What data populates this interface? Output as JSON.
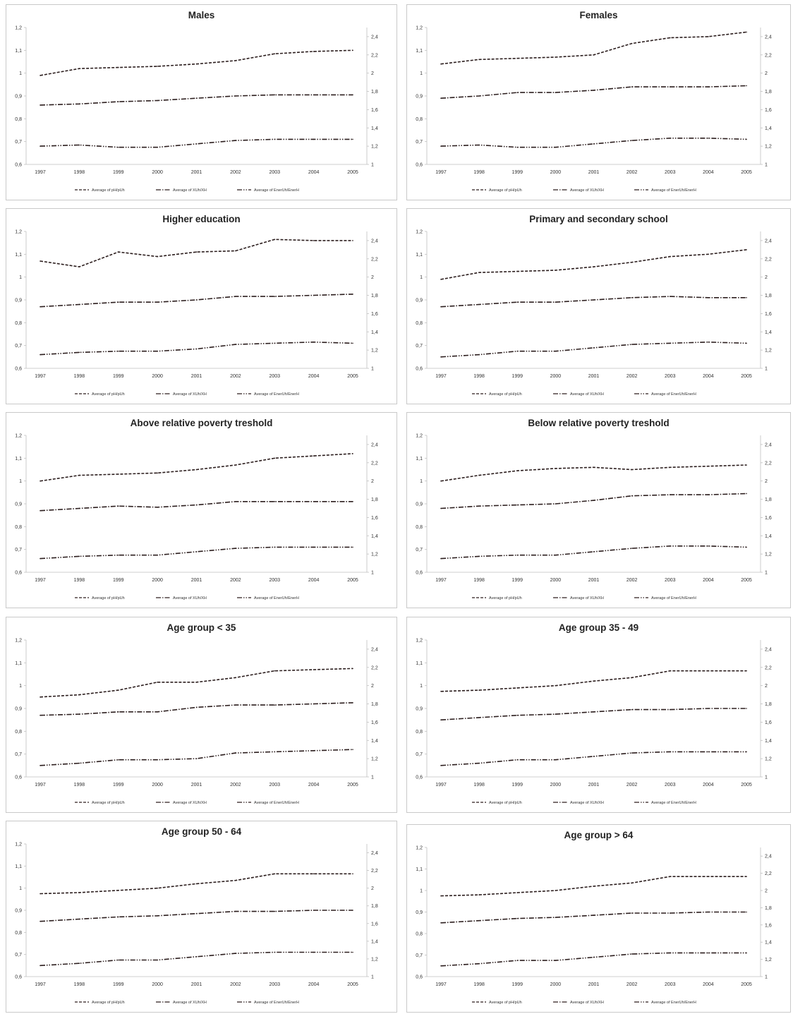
{
  "style": {
    "line_color": "#2d1f1f",
    "axis_color": "#bfbfbf",
    "border_color": "#c9c9c9"
  },
  "chart_data": [
    {
      "type": "line",
      "title": "Males",
      "x": [
        "1997",
        "1998",
        "1999",
        "2000",
        "2001",
        "2002",
        "2003",
        "2004",
        "2005"
      ],
      "ylim": [
        0.6,
        1.2
      ],
      "y_ticks": [
        "0,6",
        "0,7",
        "0,8",
        "0,9",
        "1",
        "1,1",
        "1,2"
      ],
      "y2lim": [
        1.0,
        2.5
      ],
      "y2_ticks": [
        "1",
        "1,2",
        "1,4",
        "1,6",
        "1,8",
        "2",
        "2,2",
        "2,4"
      ],
      "legend_position": "bottom",
      "series": [
        {
          "name": "Average of pH/pUh",
          "axis": "left",
          "dash": "dashed",
          "values": [
            0.99,
            1.02,
            1.025,
            1.03,
            1.04,
            1.055,
            1.085,
            1.095,
            1.1
          ]
        },
        {
          "name": "Average of XUh/XH",
          "axis": "left",
          "dash": "dashdot",
          "values": [
            0.86,
            0.865,
            0.875,
            0.88,
            0.89,
            0.9,
            0.905,
            0.905,
            0.905
          ]
        },
        {
          "name": "Average of EnerUh/EnerH",
          "axis": "left",
          "dash": "dashdotdot",
          "values": [
            0.68,
            0.685,
            0.675,
            0.675,
            0.69,
            0.705,
            0.71,
            0.71,
            0.71
          ]
        }
      ]
    },
    {
      "type": "line",
      "title": "Females",
      "x": [
        "1997",
        "1998",
        "1999",
        "2000",
        "2001",
        "2002",
        "2003",
        "2004",
        "2005"
      ],
      "ylim": [
        0.6,
        1.2
      ],
      "y_ticks": [
        "0,6",
        "0,7",
        "0,8",
        "0,9",
        "1",
        "1,1",
        "1,2"
      ],
      "y2lim": [
        1.0,
        2.5
      ],
      "y2_ticks": [
        "1",
        "1,2",
        "1,4",
        "1,6",
        "1,8",
        "2",
        "2,2",
        "2,4"
      ],
      "legend_position": "bottom",
      "series": [
        {
          "name": "Average of pH/pUh",
          "axis": "left",
          "dash": "dashed",
          "values": [
            1.04,
            1.06,
            1.065,
            1.07,
            1.08,
            1.13,
            1.155,
            1.16,
            1.18
          ]
        },
        {
          "name": "Average of XUh/XH",
          "axis": "left",
          "dash": "dashdot",
          "values": [
            0.89,
            0.9,
            0.915,
            0.915,
            0.925,
            0.94,
            0.94,
            0.94,
            0.945
          ]
        },
        {
          "name": "Average of EnerUh/EnerH",
          "axis": "left",
          "dash": "dashdotdot",
          "values": [
            0.68,
            0.685,
            0.675,
            0.675,
            0.69,
            0.705,
            0.715,
            0.715,
            0.71
          ]
        }
      ]
    },
    {
      "type": "line",
      "title": "Higher education",
      "x": [
        "1997",
        "1998",
        "1999",
        "2000",
        "2001",
        "2002",
        "2003",
        "2004",
        "2005"
      ],
      "ylim": [
        0.6,
        1.2
      ],
      "y_ticks": [
        "0,6",
        "0,7",
        "0,8",
        "0,9",
        "1",
        "1,1",
        "1,2"
      ],
      "y2lim": [
        1.0,
        2.5
      ],
      "y2_ticks": [
        "1",
        "1,2",
        "1,4",
        "1,6",
        "1,8",
        "2",
        "2,2",
        "2,4"
      ],
      "legend_position": "bottom",
      "series": [
        {
          "name": "Average of pH/pUh",
          "axis": "left",
          "dash": "dashed",
          "values": [
            1.07,
            1.045,
            1.11,
            1.09,
            1.11,
            1.115,
            1.165,
            1.16,
            1.16
          ]
        },
        {
          "name": "Average of XUh/XH",
          "axis": "left",
          "dash": "dashdot",
          "values": [
            0.87,
            0.88,
            0.89,
            0.89,
            0.9,
            0.915,
            0.915,
            0.92,
            0.925
          ]
        },
        {
          "name": "Average of EnerUh/EnerH",
          "axis": "left",
          "dash": "dashdotdot",
          "values": [
            0.66,
            0.67,
            0.675,
            0.675,
            0.685,
            0.705,
            0.71,
            0.715,
            0.71
          ]
        }
      ]
    },
    {
      "type": "line",
      "title": "Primary and secondary school",
      "x": [
        "1997",
        "1998",
        "1999",
        "2000",
        "2001",
        "2002",
        "2003",
        "2004",
        "2005"
      ],
      "ylim": [
        0.6,
        1.2
      ],
      "y_ticks": [
        "0,6",
        "0,7",
        "0,8",
        "0,9",
        "1",
        "1,1",
        "1,2"
      ],
      "y2lim": [
        1.0,
        2.5
      ],
      "y2_ticks": [
        "1",
        "1,2",
        "1,4",
        "1,6",
        "1,8",
        "2",
        "2,2",
        "2,4"
      ],
      "legend_position": "bottom",
      "series": [
        {
          "name": "Average of pH/pUh",
          "axis": "left",
          "dash": "dashed",
          "values": [
            0.99,
            1.02,
            1.025,
            1.03,
            1.045,
            1.065,
            1.09,
            1.1,
            1.12
          ]
        },
        {
          "name": "Average of XUh/XH",
          "axis": "left",
          "dash": "dashdot",
          "values": [
            0.87,
            0.88,
            0.89,
            0.89,
            0.9,
            0.91,
            0.915,
            0.91,
            0.91
          ]
        },
        {
          "name": "Average of EnerUh/EnerH",
          "axis": "left",
          "dash": "dashdotdot",
          "values": [
            0.65,
            0.66,
            0.675,
            0.675,
            0.69,
            0.705,
            0.71,
            0.715,
            0.71
          ]
        }
      ]
    },
    {
      "type": "line",
      "title": "Above relative poverty treshold",
      "x": [
        "1997",
        "1998",
        "1999",
        "2000",
        "2001",
        "2002",
        "2003",
        "2004",
        "2005"
      ],
      "ylim": [
        0.6,
        1.2
      ],
      "y_ticks": [
        "0,6",
        "0,7",
        "0,8",
        "0,9",
        "1",
        "1,1",
        "1,2"
      ],
      "y2lim": [
        1.0,
        2.5
      ],
      "y2_ticks": [
        "1",
        "1,2",
        "1,4",
        "1,6",
        "1,8",
        "2",
        "2,2",
        "2,4"
      ],
      "legend_position": "bottom",
      "series": [
        {
          "name": "Average of pH/pUh",
          "axis": "left",
          "dash": "dashed",
          "values": [
            1.0,
            1.025,
            1.03,
            1.035,
            1.05,
            1.07,
            1.1,
            1.11,
            1.12
          ]
        },
        {
          "name": "Average of XUh/XH",
          "axis": "left",
          "dash": "dashdot",
          "values": [
            0.87,
            0.88,
            0.89,
            0.885,
            0.895,
            0.91,
            0.91,
            0.91,
            0.91
          ]
        },
        {
          "name": "Average of EnerUh/EnerH",
          "axis": "left",
          "dash": "dashdotdot",
          "values": [
            0.66,
            0.67,
            0.675,
            0.675,
            0.69,
            0.705,
            0.71,
            0.71,
            0.71
          ]
        }
      ]
    },
    {
      "type": "line",
      "title": "Below relative poverty treshold",
      "x": [
        "1997",
        "1998",
        "1999",
        "2000",
        "2001",
        "2002",
        "2003",
        "2004",
        "2005"
      ],
      "ylim": [
        0.6,
        1.2
      ],
      "y_ticks": [
        "0,6",
        "0,7",
        "0,8",
        "0,9",
        "1",
        "1,1",
        "1,2"
      ],
      "y2lim": [
        1.0,
        2.5
      ],
      "y2_ticks": [
        "1",
        "1,2",
        "1,4",
        "1,6",
        "1,8",
        "2",
        "2,2",
        "2,4"
      ],
      "legend_position": "bottom",
      "series": [
        {
          "name": "Average of pH/pUh",
          "axis": "left",
          "dash": "dashed",
          "values": [
            1.0,
            1.025,
            1.045,
            1.055,
            1.06,
            1.05,
            1.06,
            1.065,
            1.07
          ]
        },
        {
          "name": "Average of XUh/XH",
          "axis": "left",
          "dash": "dashdot",
          "values": [
            0.88,
            0.89,
            0.895,
            0.9,
            0.915,
            0.935,
            0.94,
            0.94,
            0.945
          ]
        },
        {
          "name": "Average of EnerUh/EnerH",
          "axis": "left",
          "dash": "dashdotdot",
          "values": [
            0.66,
            0.67,
            0.675,
            0.675,
            0.69,
            0.705,
            0.715,
            0.715,
            0.71
          ]
        }
      ]
    },
    {
      "type": "line",
      "title": "Age group < 35",
      "x": [
        "1997",
        "1998",
        "1999",
        "2000",
        "2001",
        "2002",
        "2003",
        "2004",
        "2005"
      ],
      "ylim": [
        0.6,
        1.2
      ],
      "y_ticks": [
        "0,6",
        "0,7",
        "0,8",
        "0,9",
        "1",
        "1,1",
        "1,2"
      ],
      "y2lim": [
        1.0,
        2.5
      ],
      "y2_ticks": [
        "1",
        "1,2",
        "1,4",
        "1,6",
        "1,8",
        "2",
        "2,2",
        "2,4"
      ],
      "legend_position": "bottom",
      "series": [
        {
          "name": "Average of pH/pUh",
          "axis": "left",
          "dash": "dashed",
          "values": [
            0.95,
            0.96,
            0.98,
            1.015,
            1.015,
            1.035,
            1.065,
            1.07,
            1.075
          ]
        },
        {
          "name": "Average of XUh/XH",
          "axis": "left",
          "dash": "dashdot",
          "values": [
            0.87,
            0.875,
            0.885,
            0.885,
            0.905,
            0.915,
            0.915,
            0.92,
            0.925
          ]
        },
        {
          "name": "Average of EnerUh/EnerH",
          "axis": "left",
          "dash": "dashdotdot",
          "values": [
            0.65,
            0.66,
            0.675,
            0.675,
            0.68,
            0.705,
            0.71,
            0.715,
            0.72
          ]
        }
      ]
    },
    {
      "type": "line",
      "title": "Age group 35 - 49",
      "x": [
        "1997",
        "1998",
        "1999",
        "2000",
        "2001",
        "2002",
        "2003",
        "2004",
        "2005"
      ],
      "ylim": [
        0.6,
        1.2
      ],
      "y_ticks": [
        "0,6",
        "0,7",
        "0,8",
        "0,9",
        "1",
        "1,1",
        "1,2"
      ],
      "y2lim": [
        1.0,
        2.5
      ],
      "y2_ticks": [
        "1",
        "1,2",
        "1,4",
        "1,6",
        "1,8",
        "2",
        "2,2",
        "2,4"
      ],
      "legend_position": "bottom",
      "series": [
        {
          "name": "Average of pH/pUh",
          "axis": "left",
          "dash": "dashed",
          "values": [
            0.975,
            0.98,
            0.99,
            1.0,
            1.02,
            1.035,
            1.065,
            1.065,
            1.065
          ]
        },
        {
          "name": "Average of XUh/XH",
          "axis": "left",
          "dash": "dashdot",
          "values": [
            0.85,
            0.86,
            0.87,
            0.875,
            0.885,
            0.895,
            0.895,
            0.9,
            0.9
          ]
        },
        {
          "name": "Average of EnerUh/EnerH",
          "axis": "left",
          "dash": "dashdotdot",
          "values": [
            0.65,
            0.66,
            0.675,
            0.675,
            0.69,
            0.705,
            0.71,
            0.71,
            0.71
          ]
        }
      ]
    },
    {
      "type": "line",
      "title": "Age group 50 - 64",
      "x": [
        "1997",
        "1998",
        "1999",
        "2000",
        "2001",
        "2002",
        "2003",
        "2004",
        "2005"
      ],
      "ylim": [
        0.6,
        1.2
      ],
      "y_ticks": [
        "0,6",
        "0,7",
        "0,8",
        "0,9",
        "1",
        "1,1",
        "1,2"
      ],
      "y2lim": [
        1.0,
        2.5
      ],
      "y2_ticks": [
        "1",
        "1,2",
        "1,4",
        "1,6",
        "1,8",
        "2",
        "2,2",
        "2,4"
      ],
      "legend_position": "bottom",
      "series": [
        {
          "name": "Average of pH/pUh",
          "axis": "left",
          "dash": "dashed",
          "values": [
            0.975,
            0.98,
            0.99,
            1.0,
            1.02,
            1.035,
            1.065,
            1.065,
            1.065
          ]
        },
        {
          "name": "Average of XUh/XH",
          "axis": "left",
          "dash": "dashdot",
          "values": [
            0.85,
            0.86,
            0.87,
            0.875,
            0.885,
            0.895,
            0.895,
            0.9,
            0.9
          ]
        },
        {
          "name": "Average of EnerUh/EnerH",
          "axis": "left",
          "dash": "dashdotdot",
          "values": [
            0.65,
            0.66,
            0.675,
            0.675,
            0.69,
            0.705,
            0.71,
            0.71,
            0.71
          ]
        }
      ]
    },
    {
      "type": "line",
      "title": "Age group > 64",
      "x": [
        "1997",
        "1998",
        "1999",
        "2000",
        "2001",
        "2002",
        "2003",
        "2004",
        "2005"
      ],
      "ylim": [
        0.6,
        1.2
      ],
      "y_ticks": [
        "0,6",
        "0,7",
        "0,8",
        "0,9",
        "1",
        "1,1",
        "1,2"
      ],
      "y2lim": [
        1.0,
        2.5
      ],
      "y2_ticks": [
        "1",
        "1,2",
        "1,4",
        "1,6",
        "1,8",
        "2",
        "2,2",
        "2,4"
      ],
      "legend_position": "bottom",
      "series": [
        {
          "name": "Average of pH/pUh",
          "axis": "left",
          "dash": "dashed",
          "values": [
            0.975,
            0.98,
            0.99,
            1.0,
            1.02,
            1.035,
            1.065,
            1.065,
            1.065
          ]
        },
        {
          "name": "Average of XUh/XH",
          "axis": "left",
          "dash": "dashdot",
          "values": [
            0.85,
            0.86,
            0.87,
            0.875,
            0.885,
            0.895,
            0.895,
            0.9,
            0.9
          ]
        },
        {
          "name": "Average of EnerUh/EnerH",
          "axis": "left",
          "dash": "dashdotdot",
          "values": [
            0.65,
            0.66,
            0.675,
            0.675,
            0.69,
            0.705,
            0.71,
            0.71,
            0.71
          ]
        }
      ]
    }
  ]
}
